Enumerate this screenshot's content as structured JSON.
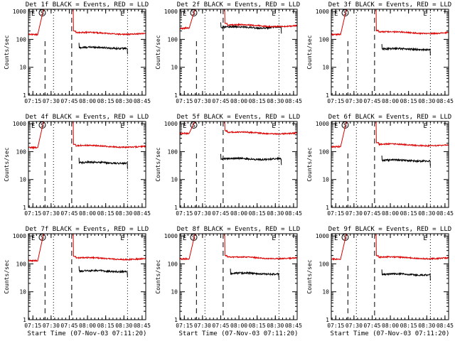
{
  "figure": {
    "ylabel": "Counts/sec",
    "xlabel": "Start Time (07-Nov-03 07:11:20)",
    "y_ticks": [
      "1",
      "10",
      "100",
      "1000"
    ],
    "x_ticks": [
      "07:15",
      "07:30",
      "07:45",
      "08:00",
      "08:15",
      "08:30",
      "08:45"
    ],
    "flags": {
      "left": "E",
      "circle": "S",
      "right": "E"
    },
    "colors": {
      "events": "#000000",
      "lld": "#dd0000",
      "axes": "#000000"
    }
  },
  "chart_data": [
    {
      "type": "line",
      "title": "Det 1f BLACK = Events, RED = LLD",
      "ylim": [
        1,
        1200
      ],
      "xlim": [
        "07:11:20",
        "08:48:00"
      ],
      "series": [
        {
          "name": "Events",
          "segments": [
            {
              "start": "07:53",
              "end": "08:33",
              "level": 50
            }
          ]
        },
        {
          "name": "LLD",
          "segments": [
            {
              "start": "07:11",
              "end": "07:32",
              "base": 150,
              "peak": 1000
            },
            {
              "start": "07:47",
              "end": "08:48",
              "start_level": 1000,
              "level": 170
            }
          ]
        }
      ]
    },
    {
      "type": "line",
      "title": "Det 2f BLACK = Events, RED = LLD",
      "ylim": [
        1,
        1200
      ],
      "xlim": [
        "07:11:20",
        "08:48:00"
      ],
      "series": [
        {
          "name": "Events",
          "segments": [
            {
              "start": "07:45",
              "end": "08:35",
              "level": 270
            }
          ]
        },
        {
          "name": "LLD",
          "segments": [
            {
              "start": "07:11",
              "end": "07:32",
              "base": 250,
              "peak": 1000
            },
            {
              "start": "07:47",
              "end": "08:48",
              "start_level": 1000,
              "level": 320
            }
          ]
        }
      ]
    },
    {
      "type": "line",
      "title": "Det 3f BLACK = Events, RED = LLD",
      "ylim": [
        1,
        1200
      ],
      "xlim": [
        "07:11:20",
        "08:48:00"
      ],
      "series": [
        {
          "name": "Events",
          "segments": [
            {
              "start": "07:53",
              "end": "08:33",
              "level": 45
            }
          ]
        },
        {
          "name": "LLD",
          "segments": [
            {
              "start": "07:11",
              "end": "07:32",
              "base": 150,
              "peak": 1000
            },
            {
              "start": "07:47",
              "end": "08:48",
              "start_level": 1000,
              "level": 180
            }
          ]
        }
      ]
    },
    {
      "type": "line",
      "title": "Det 4f BLACK = Events, RED = LLD",
      "ylim": [
        1,
        1200
      ],
      "xlim": [
        "07:11:20",
        "08:48:00"
      ],
      "series": [
        {
          "name": "Events",
          "segments": [
            {
              "start": "07:53",
              "end": "08:33",
              "level": 40
            }
          ]
        },
        {
          "name": "LLD",
          "segments": [
            {
              "start": "07:11",
              "end": "07:32",
              "base": 140,
              "peak": 1000
            },
            {
              "start": "07:47",
              "end": "08:48",
              "start_level": 1000,
              "level": 160
            }
          ]
        }
      ]
    },
    {
      "type": "line",
      "title": "Det 5f BLACK = Events, RED = LLD",
      "ylim": [
        1,
        1200
      ],
      "xlim": [
        "07:11:20",
        "08:48:00"
      ],
      "series": [
        {
          "name": "Events",
          "segments": [
            {
              "start": "07:45",
              "end": "08:35",
              "level": 55
            }
          ]
        },
        {
          "name": "LLD",
          "segments": [
            {
              "start": "07:11",
              "end": "07:32",
              "base": 450,
              "peak": 1000
            },
            {
              "start": "07:47",
              "end": "08:48",
              "start_level": 1000,
              "level": 480
            }
          ]
        }
      ]
    },
    {
      "type": "line",
      "title": "Det 6f BLACK = Events, RED = LLD",
      "ylim": [
        1,
        1200
      ],
      "xlim": [
        "07:11:20",
        "08:48:00"
      ],
      "series": [
        {
          "name": "Events",
          "segments": [
            {
              "start": "07:53",
              "end": "08:33",
              "level": 48
            }
          ]
        },
        {
          "name": "LLD",
          "segments": [
            {
              "start": "07:11",
              "end": "07:32",
              "base": 150,
              "peak": 1000
            },
            {
              "start": "07:47",
              "end": "08:48",
              "start_level": 1000,
              "level": 180
            }
          ]
        }
      ]
    },
    {
      "type": "line",
      "title": "Det 7f BLACK = Events, RED = LLD",
      "ylim": [
        1,
        1200
      ],
      "xlim": [
        "07:11:20",
        "08:48:00"
      ],
      "series": [
        {
          "name": "Events",
          "segments": [
            {
              "start": "07:53",
              "end": "08:33",
              "level": 55
            }
          ]
        },
        {
          "name": "LLD",
          "segments": [
            {
              "start": "07:11",
              "end": "07:32",
              "base": 130,
              "peak": 1000
            },
            {
              "start": "07:47",
              "end": "08:48",
              "start_level": 1000,
              "level": 160
            }
          ]
        }
      ]
    },
    {
      "type": "line",
      "title": "Det 8f BLACK = Events, RED = LLD",
      "ylim": [
        1,
        1200
      ],
      "xlim": [
        "07:11:20",
        "08:48:00"
      ],
      "series": [
        {
          "name": "Events",
          "segments": [
            {
              "start": "07:53",
              "end": "08:33",
              "level": 45
            }
          ]
        },
        {
          "name": "LLD",
          "segments": [
            {
              "start": "07:11",
              "end": "07:32",
              "base": 150,
              "peak": 1000
            },
            {
              "start": "07:47",
              "end": "08:48",
              "start_level": 1000,
              "level": 170
            }
          ]
        }
      ]
    },
    {
      "type": "line",
      "title": "Det 9f BLACK = Events, RED = LLD",
      "ylim": [
        1,
        1200
      ],
      "xlim": [
        "07:11:20",
        "08:48:00"
      ],
      "series": [
        {
          "name": "Events",
          "segments": [
            {
              "start": "07:53",
              "end": "08:33",
              "level": 42
            }
          ]
        },
        {
          "name": "LLD",
          "segments": [
            {
              "start": "07:11",
              "end": "07:32",
              "base": 150,
              "peak": 1000
            },
            {
              "start": "07:47",
              "end": "08:48",
              "start_level": 1000,
              "level": 170
            }
          ]
        }
      ]
    }
  ]
}
